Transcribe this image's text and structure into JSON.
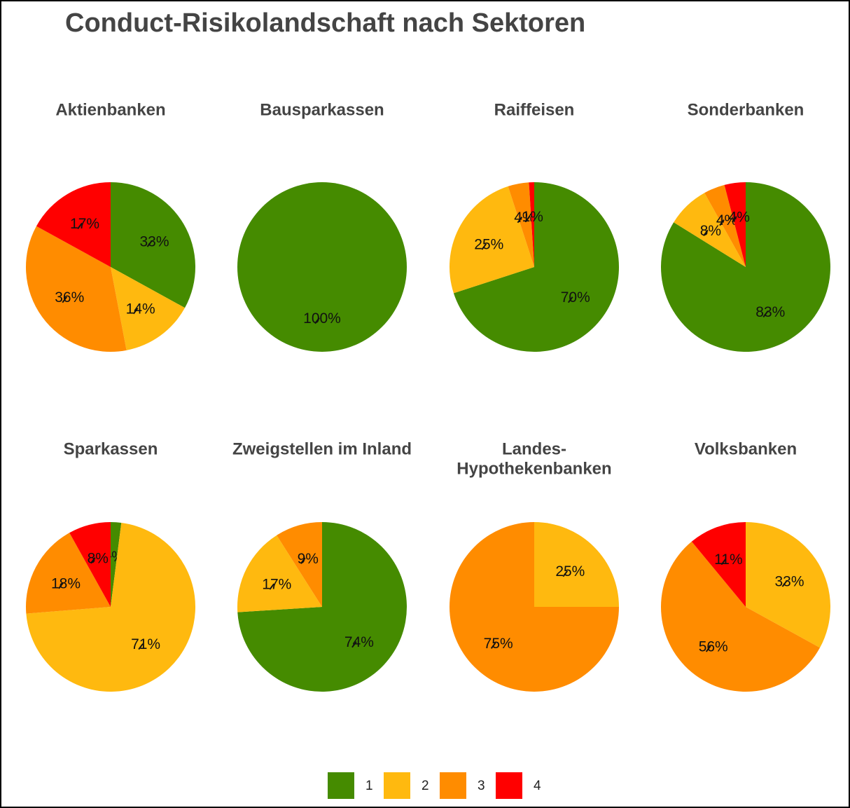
{
  "title": "Conduct-Risikolandschaft nach Sektoren",
  "legend": {
    "categories": [
      "1",
      "2",
      "3",
      "4"
    ],
    "colors": [
      "#458b00",
      "#ffb90f",
      "#ff8c00",
      "#ff0000"
    ]
  },
  "chart_data": [
    {
      "type": "pie",
      "title": "Aktienbanken",
      "categories": [
        "1",
        "2",
        "3",
        "4"
      ],
      "values": [
        33,
        14,
        36,
        17
      ],
      "value_labels": [
        "33%",
        "14%",
        "36%",
        "17%"
      ]
    },
    {
      "type": "pie",
      "title": "Bausparkassen",
      "categories": [
        "1"
      ],
      "values": [
        100
      ],
      "value_labels": [
        "100%"
      ]
    },
    {
      "type": "pie",
      "title": "Raiffeisen",
      "categories": [
        "1",
        "2",
        "3",
        "4"
      ],
      "values": [
        70,
        25,
        4,
        1
      ],
      "value_labels": [
        "70%",
        "25%",
        "4%",
        "1%"
      ]
    },
    {
      "type": "pie",
      "title": "Sonderbanken",
      "categories": [
        "1",
        "2",
        "3",
        "4"
      ],
      "values": [
        83,
        8,
        4,
        4
      ],
      "value_labels": [
        "83%",
        "8%",
        "4%",
        "4%"
      ]
    },
    {
      "type": "pie",
      "title": "Sparkassen",
      "categories": [
        "1",
        "2",
        "3",
        "4"
      ],
      "values": [
        2,
        71,
        18,
        8
      ],
      "value_labels": [
        "2%",
        "71%",
        "18%",
        "8%"
      ]
    },
    {
      "type": "pie",
      "title": "Zweigstellen im Inland",
      "categories": [
        "1",
        "2",
        "3"
      ],
      "values": [
        74,
        17,
        9
      ],
      "value_labels": [
        "74%",
        "17%",
        "9%"
      ]
    },
    {
      "type": "pie",
      "title": [
        "Landes-",
        "Hypothekenbanken"
      ],
      "categories": [
        "2",
        "3"
      ],
      "values": [
        25,
        75
      ],
      "value_labels": [
        "25%",
        "75%"
      ]
    },
    {
      "type": "pie",
      "title": "Volksbanken",
      "categories": [
        "2",
        "3",
        "4"
      ],
      "values": [
        33,
        56,
        11
      ],
      "value_labels": [
        "33%",
        "56%",
        "11%"
      ]
    }
  ]
}
